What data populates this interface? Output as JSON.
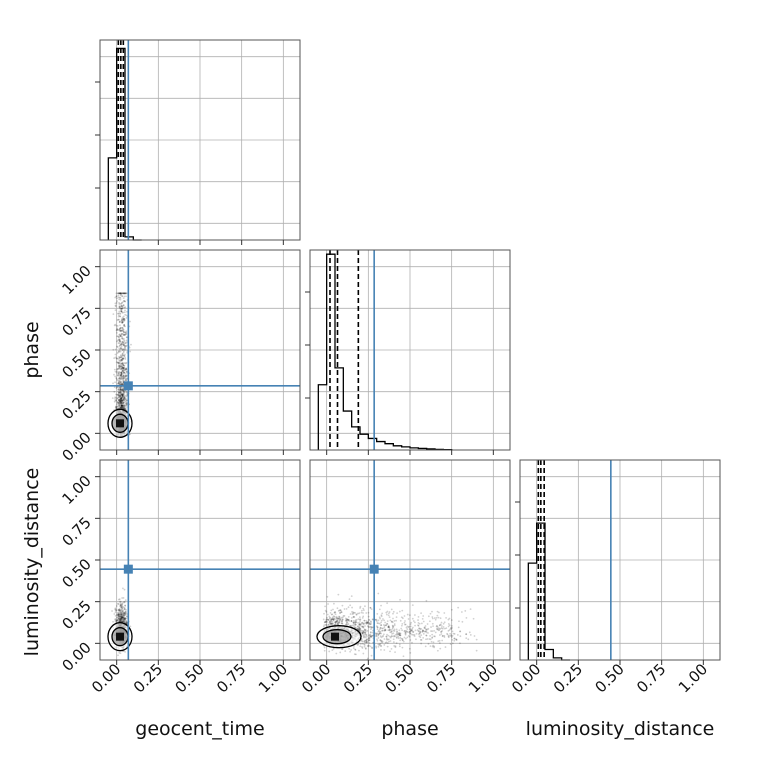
{
  "chart_data": {
    "type": "corner",
    "parameters": [
      "geocent_time",
      "phase",
      "luminosity_distance"
    ],
    "tick_values": [
      0.0,
      0.25,
      0.5,
      0.75,
      1.0
    ],
    "tick_labels": [
      "0.00",
      "0.25",
      "0.50",
      "0.75",
      "1.00"
    ],
    "xlim": [
      -0.1,
      1.1
    ],
    "ylim": [
      -0.1,
      1.1
    ],
    "grid": true,
    "truth_color": "#4682b4",
    "truths": {
      "geocent_time": 0.07,
      "phase": 0.285,
      "luminosity_distance": 0.445
    },
    "quantiles": {
      "geocent_time": [
        0.01,
        0.025,
        0.04
      ],
      "phase": [
        0.02,
        0.065,
        0.19
      ],
      "luminosity_distance": [
        0.01,
        0.025,
        0.045
      ]
    },
    "histograms": {
      "geocent_time": {
        "edges": [
          -0.05,
          0.0,
          0.05,
          0.1,
          0.15
        ],
        "counts": [
          0.78,
          1.82,
          0.03,
          0.0
        ]
      },
      "phase": {
        "edges": [
          -0.05,
          0.0,
          0.05,
          0.1,
          0.15,
          0.2,
          0.25,
          0.3,
          0.35,
          0.4,
          0.45,
          0.5,
          0.55,
          0.6,
          0.65,
          0.7,
          0.75
        ],
        "counts": [
          0.62,
          1.86,
          0.78,
          0.37,
          0.22,
          0.15,
          0.11,
          0.08,
          0.06,
          0.04,
          0.03,
          0.02,
          0.015,
          0.01,
          0.006,
          0.003
        ]
      },
      "luminosity_distance": {
        "edges": [
          -0.05,
          0.0,
          0.05,
          0.1,
          0.15,
          0.2
        ],
        "counts": [
          0.92,
          1.3,
          0.1,
          0.02,
          0.0
        ]
      }
    },
    "scatter_clouds": {
      "phase_vs_geocent_time": {
        "x_center": 0.03,
        "x_spread": 0.02,
        "y_min": -0.03,
        "y_max": 0.86,
        "density": "concentrated near y=0.05"
      },
      "luminosity_distance_vs_geocent_time": {
        "x_center": 0.03,
        "x_spread": 0.02,
        "y_min": -0.05,
        "y_max": 0.25,
        "density": "concentrated near y=0.05"
      },
      "luminosity_distance_vs_phase": {
        "x_min": -0.02,
        "x_max": 0.85,
        "y_center": 0.05,
        "y_spread": 0.05,
        "density": "concentrated near x=0.05"
      }
    },
    "contour_centers": {
      "phase_vs_geocent_time": [
        0.02,
        0.06
      ],
      "luminosity_distance_vs_geocent_time": [
        0.02,
        0.04
      ],
      "luminosity_distance_vs_phase": [
        0.05,
        0.04
      ]
    }
  }
}
